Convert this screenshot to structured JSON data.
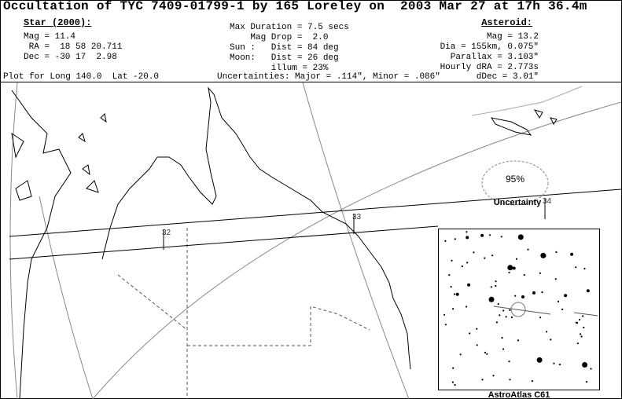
{
  "header": {
    "title": "Occultation of TYC 7409-01799-1 by 165 Loreley on  2003 Mar 27 at 17h 36.4m",
    "star": {
      "heading": "Star (2000):",
      "lines": [
        "Mag = 11.4",
        " RA =  18 58 20.711",
        "Dec = -30 17  2.98"
      ]
    },
    "event": {
      "lines": [
        "Max Duration = 7.5 secs",
        "    Mag Drop =  2.0",
        "Sun :   Dist = 84 deg",
        "Moon:   Dist = 26 deg",
        "        illum = 23%"
      ]
    },
    "asteroid": {
      "heading": "Asteroid:",
      "lines": [
        "Mag = 13.2",
        "Dia = 155km, 0.075\"",
        "Parallax = 3.103\"",
        "Hourly dRA = 2.773s"
      ]
    },
    "footer": {
      "location": "Plot for Long 140.0  Lat -20.0",
      "uncertainties": "Uncertainties: Major = .114\", Minor = .086\"",
      "ddec": "dDec = 3.01\""
    }
  },
  "map": {
    "time_labels": [
      "32",
      "33",
      "34"
    ],
    "confidence": "95%",
    "uncertainty_label": "Uncertainty",
    "inset_label": "AstroAtlas C61"
  }
}
